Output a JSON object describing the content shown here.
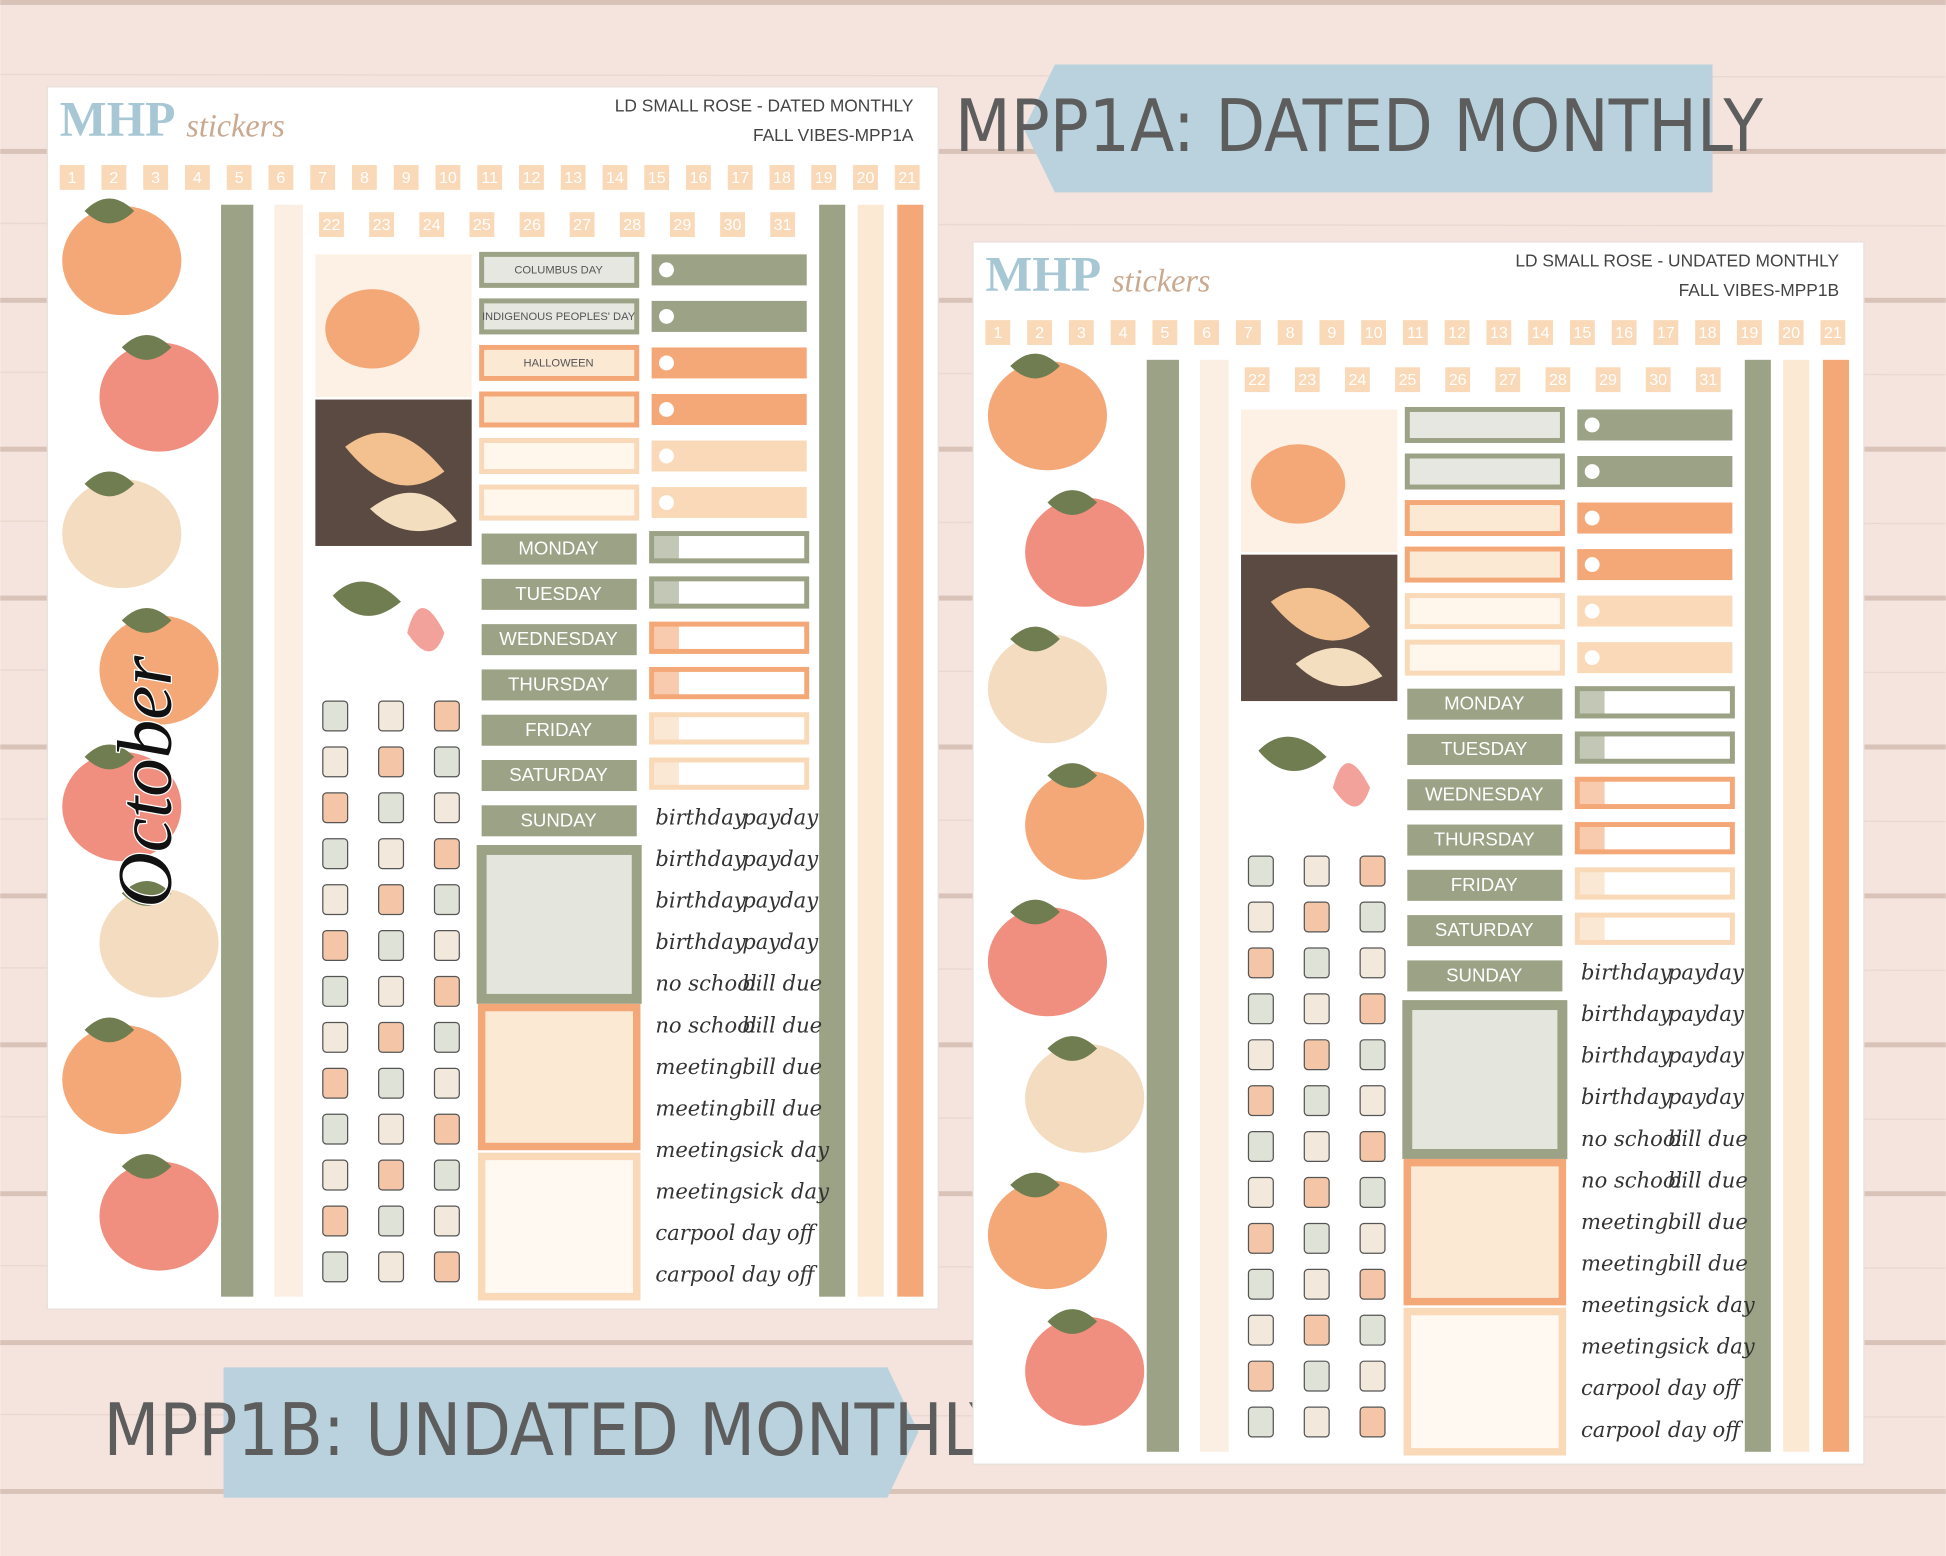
{
  "banners": [
    "MPP1A: DATED MONTHLY",
    "MPP1B: UNDATED MONTHLY"
  ],
  "sheets": [
    {
      "brand": "MHP",
      "brand_script": "stickers",
      "title_lines": [
        "LD SMALL ROSE - DATED MONTHLY",
        "FALL VIBES-MPP1A"
      ],
      "date_row_1": [
        1,
        2,
        3,
        4,
        5,
        6,
        7,
        8,
        9,
        10,
        11,
        12,
        13,
        14,
        15,
        16,
        17,
        18,
        19,
        20,
        21
      ],
      "date_row_2": [
        22,
        23,
        24,
        25,
        26,
        27,
        28,
        29,
        30,
        31
      ],
      "month": "October",
      "holidays": [
        "COLUMBUS DAY",
        "INDIGENOUS PEOPLES' DAY",
        "HALLOWEEN"
      ],
      "weekdays": [
        "MONDAY",
        "TUESDAY",
        "WEDNESDAY",
        "THURSDAY",
        "FRIDAY",
        "SATURDAY",
        "SUNDAY"
      ],
      "words": [
        [
          "birthday",
          "payday"
        ],
        [
          "birthday",
          "payday"
        ],
        [
          "birthday",
          "payday"
        ],
        [
          "birthday",
          "payday"
        ],
        [
          "no school",
          "bill due"
        ],
        [
          "no school",
          "bill due"
        ],
        [
          "meeting",
          "bill due"
        ],
        [
          "meeting",
          "bill due"
        ],
        [
          "meeting",
          "sick day"
        ],
        [
          "meeting",
          "sick day"
        ],
        [
          "carpool",
          "day off"
        ],
        [
          "carpool",
          "day off"
        ]
      ]
    },
    {
      "brand": "MHP",
      "brand_script": "stickers",
      "title_lines": [
        "LD SMALL ROSE - UNDATED MONTHLY",
        "FALL VIBES-MPP1B"
      ],
      "date_row_1": [
        1,
        2,
        3,
        4,
        5,
        6,
        7,
        8,
        9,
        10,
        11,
        12,
        13,
        14,
        15,
        16,
        17,
        18,
        19,
        20,
        21
      ],
      "date_row_2": [
        22,
        23,
        24,
        25,
        26,
        27,
        28,
        29,
        30,
        31
      ],
      "weekdays": [
        "MONDAY",
        "TUESDAY",
        "WEDNESDAY",
        "THURSDAY",
        "FRIDAY",
        "SATURDAY",
        "SUNDAY"
      ],
      "words": [
        [
          "birthday",
          "payday"
        ],
        [
          "birthday",
          "payday"
        ],
        [
          "birthday",
          "payday"
        ],
        [
          "birthday",
          "payday"
        ],
        [
          "no school",
          "bill due"
        ],
        [
          "no school",
          "bill due"
        ],
        [
          "meeting",
          "bill due"
        ],
        [
          "meeting",
          "bill due"
        ],
        [
          "meeting",
          "sick day"
        ],
        [
          "meeting",
          "sick day"
        ],
        [
          "carpool",
          "day off"
        ],
        [
          "carpool",
          "day off"
        ]
      ]
    }
  ]
}
